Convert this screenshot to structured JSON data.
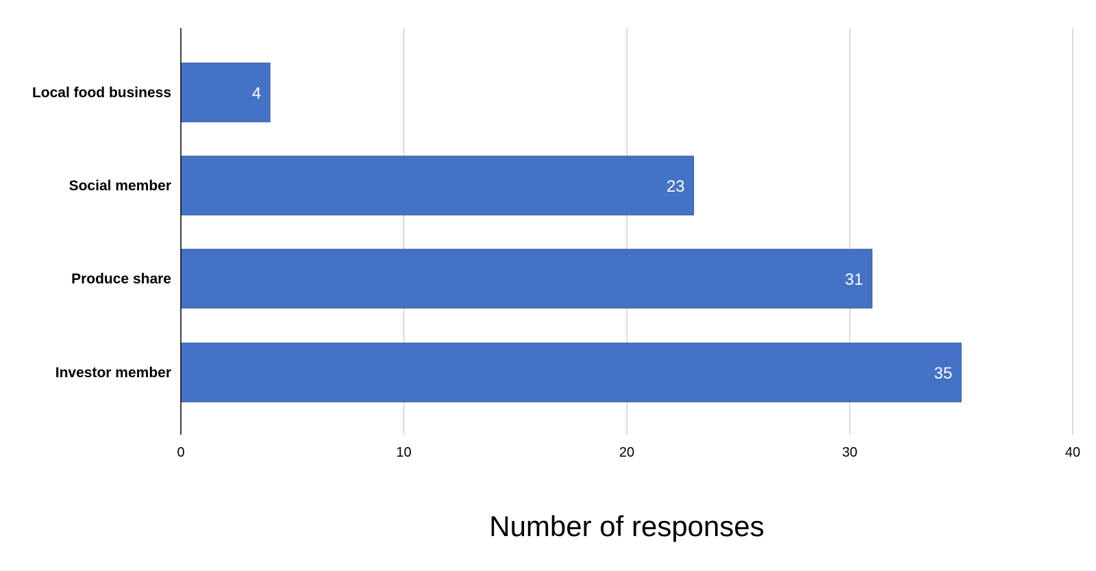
{
  "chart_data": {
    "type": "bar",
    "orientation": "horizontal",
    "categories": [
      "Local food business",
      "Social member",
      "Produce share",
      "Investor member"
    ],
    "values": [
      4,
      23,
      31,
      35
    ],
    "data_labels": [
      "4",
      "23",
      "31",
      "35"
    ],
    "title": "",
    "xlabel": "Number of responses",
    "ylabel": "",
    "xlim": [
      0,
      40
    ],
    "x_ticks": [
      0,
      10,
      20,
      30,
      40
    ],
    "x_tick_labels": [
      "0",
      "10",
      "20",
      "30",
      "40"
    ],
    "grid": "vertical",
    "legend": "none",
    "colors": {
      "bar": "#4472C4",
      "bar_edge": "#2F5597",
      "grid": "#D0D0D0",
      "axis": "#000000",
      "data_label": "#FFFFFF"
    }
  }
}
